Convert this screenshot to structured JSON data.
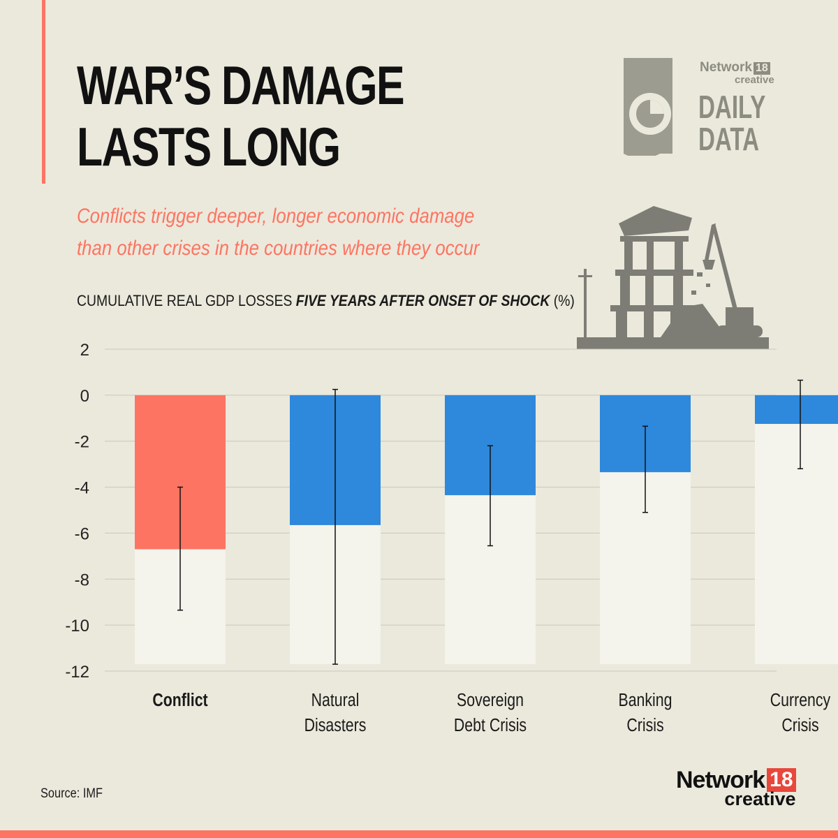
{
  "title": {
    "line1": "WAR’S DAMAGE",
    "line2": "LASTS LONG"
  },
  "subtitle": {
    "line1": "Conflicts trigger deeper, longer economic damage",
    "line2": "than other crises in the countries where they occur"
  },
  "chart_heading": {
    "normal": "CUMULATIVE REAL GDP LOSSES ",
    "emphasis": "FIVE YEARS AFTER ONSET OF SHOCK",
    "unit": " (%)"
  },
  "brand": {
    "network": "Network",
    "num": "18",
    "creative": "creative",
    "daily": "DAILY",
    "data": "DATA"
  },
  "source": "Source: IMF",
  "colors": {
    "background": "#ebe9dc",
    "accent": "#fd7462",
    "highlight_bar": "#fd7462",
    "bar": "#2e88dc",
    "bar_track": "#f4f3ec",
    "grid": "#c8c7bc",
    "logo_grey": "#8c8c80",
    "building": "#7d7d76"
  },
  "chart_data": {
    "type": "bar",
    "title": "CUMULATIVE REAL GDP LOSSES FIVE YEARS AFTER ONSET OF SHOCK (%)",
    "categories": [
      [
        "Conflict"
      ],
      [
        "Natural",
        "Disasters"
      ],
      [
        "Sovereign",
        "Debt Crisis"
      ],
      [
        "Banking",
        "Crisis"
      ],
      [
        "Currency",
        "Crisis"
      ]
    ],
    "values": [
      -6.7,
      -5.65,
      -4.35,
      -3.35,
      -1.25
    ],
    "error_bars": [
      [
        -9.35,
        -4.0
      ],
      [
        -11.7,
        0.25
      ],
      [
        -6.55,
        -2.2
      ],
      [
        -5.1,
        -1.35
      ],
      [
        -3.2,
        0.65
      ]
    ],
    "highlight_index": 0,
    "yticks": [
      2,
      0,
      -2,
      -4,
      -6,
      -8,
      -10,
      -12
    ],
    "ylim": [
      -12,
      2
    ],
    "grid": true,
    "xlabel": "",
    "ylabel": ""
  }
}
